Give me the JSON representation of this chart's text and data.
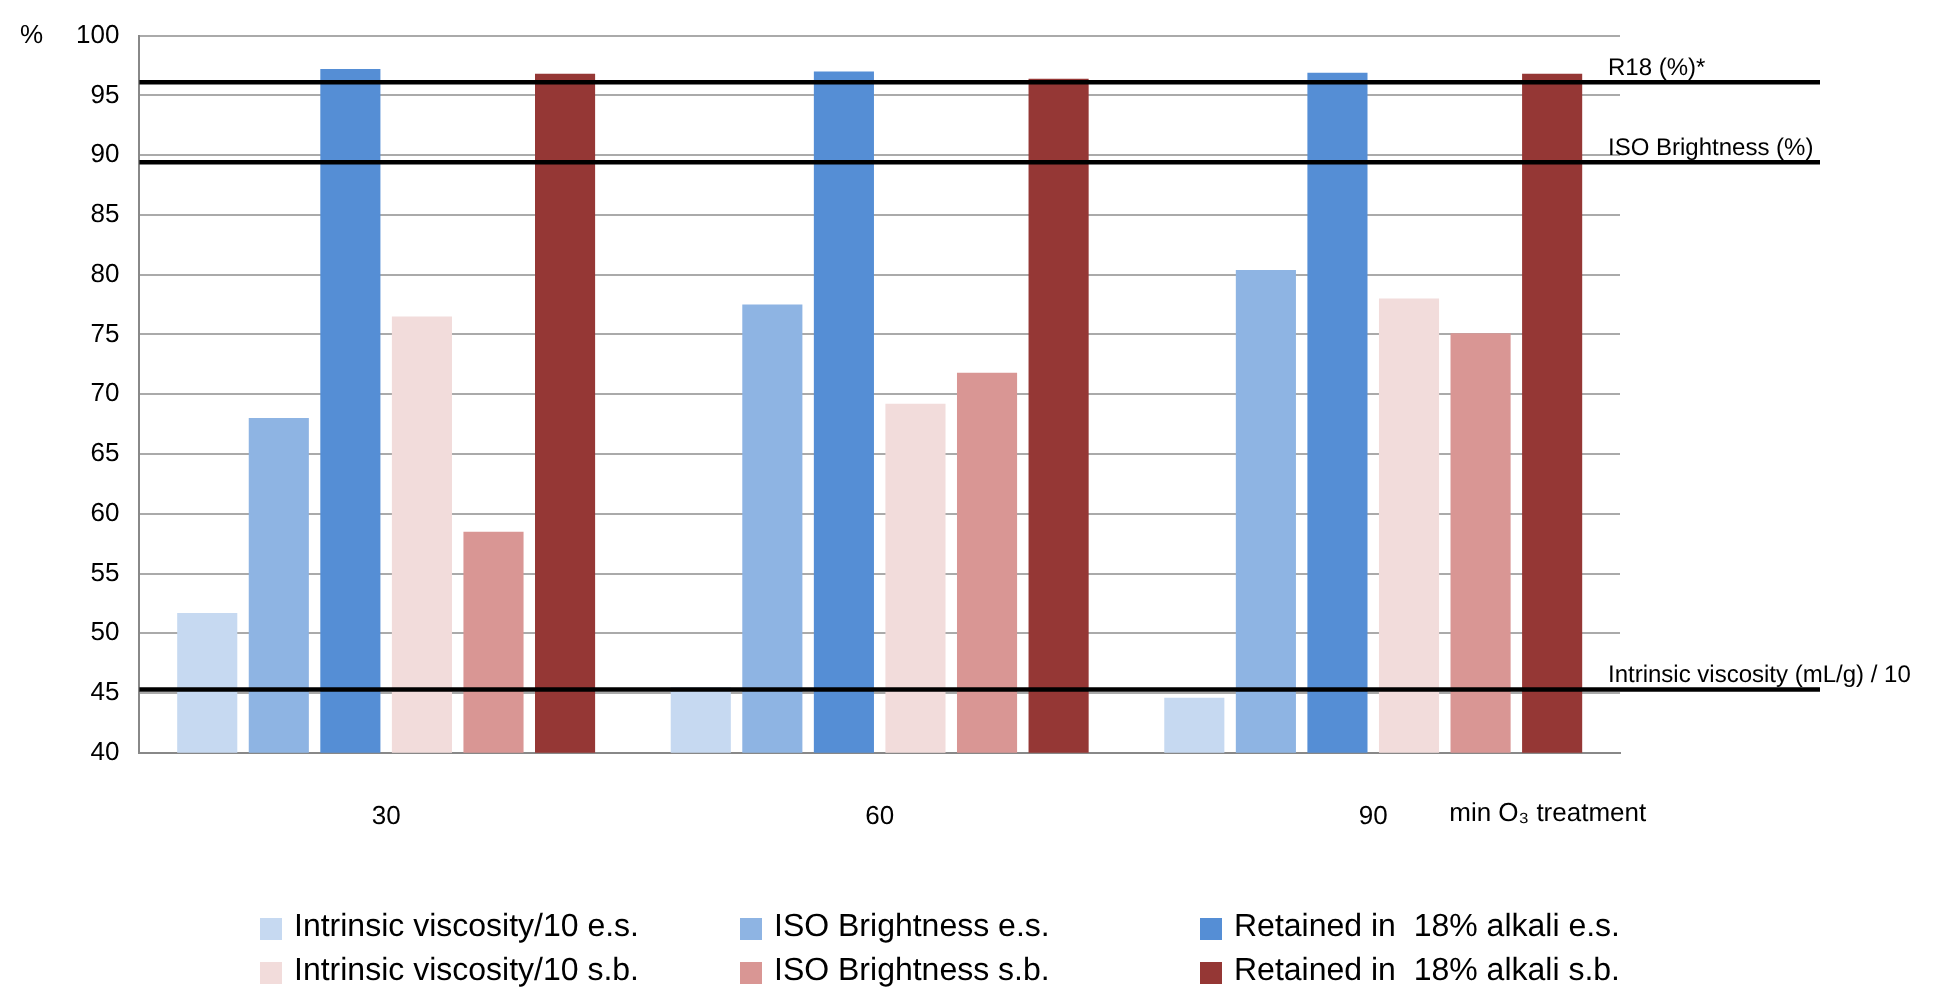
{
  "chart_data": {
    "type": "bar",
    "ylabel": "%",
    "xlabel": "min O₃ treatment",
    "categories": [
      "30",
      "60",
      "90"
    ],
    "series": [
      {
        "name": "Intrinsic viscosity/10 e.s.",
        "color": "#c6d9f1",
        "values": [
          51.7,
          45.5,
          44.6
        ]
      },
      {
        "name": "ISO Brightness e.s.",
        "color": "#8eb4e3",
        "values": [
          68.0,
          77.5,
          80.4
        ]
      },
      {
        "name": "Retained in  18% alkali e.s.",
        "color": "#558ed5",
        "values": [
          97.2,
          97.0,
          96.9
        ]
      },
      {
        "name": "Intrinsic viscosity/10 s.b.",
        "color": "#f2dcdb",
        "values": [
          76.5,
          69.2,
          78.0
        ]
      },
      {
        "name": "ISO Brightness s.b.",
        "color": "#d99694",
        "values": [
          58.5,
          71.8,
          75.1
        ]
      },
      {
        "name": "Retained in  18% alkali s.b.",
        "color": "#953735",
        "values": [
          96.8,
          96.4,
          96.8
        ]
      }
    ],
    "ylim": [
      40,
      100
    ],
    "yticks": [
      40,
      45,
      50,
      55,
      60,
      65,
      70,
      75,
      80,
      85,
      90,
      95,
      100
    ],
    "grid": "y",
    "legend": "bottom",
    "ref_lines": [
      {
        "axis": "y",
        "value": 96.1,
        "label": "R18 (%)*",
        "color": "#000000"
      },
      {
        "axis": "y",
        "value": 89.4,
        "label": "ISO Brightness (%)",
        "color": "#000000"
      },
      {
        "axis": "y",
        "value": 45.3,
        "label": "Intrinsic viscosity (mL/g) / 10",
        "color": "#000000"
      }
    ]
  }
}
